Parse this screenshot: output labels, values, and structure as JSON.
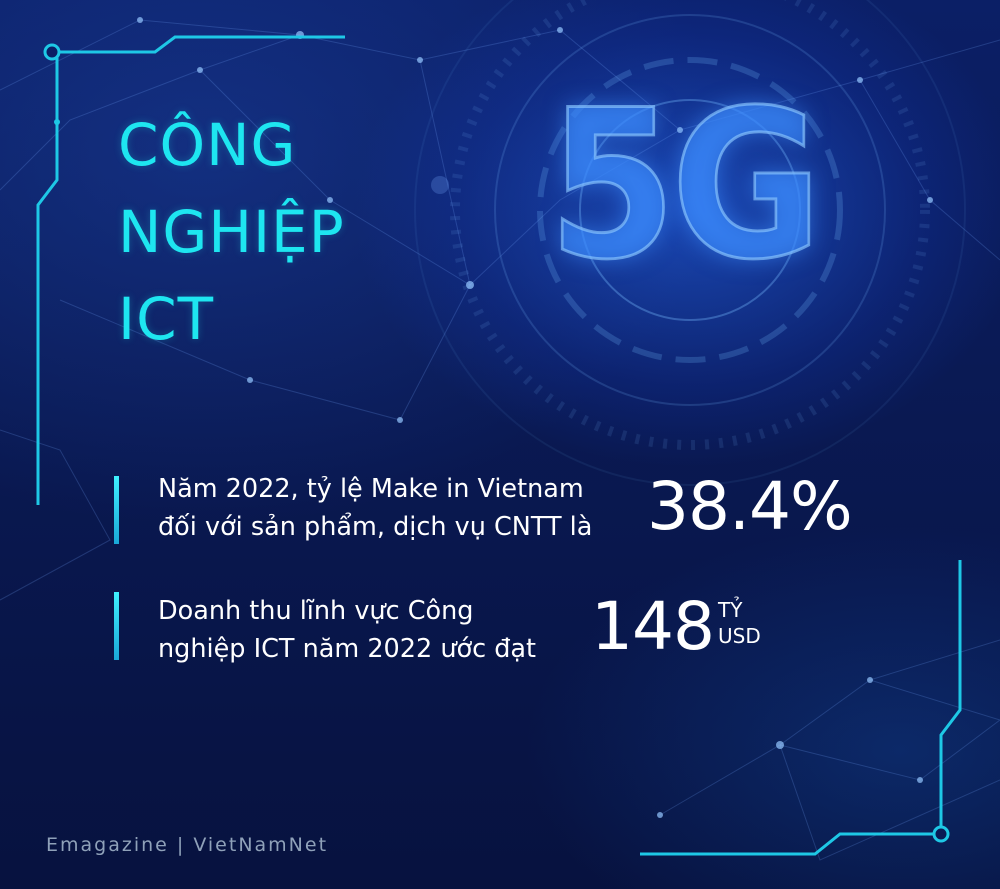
{
  "title": {
    "line1": "CÔNG",
    "line2": "NGHIỆP",
    "line3": "ICT"
  },
  "badge": "5G",
  "stats": [
    {
      "line1": "Năm 2022, tỷ lệ Make in Vietnam",
      "line2": "đối với sản phẩm, dịch vụ CNTT là",
      "value": "38.4%"
    },
    {
      "line1": "Doanh thu lĩnh vực Công",
      "line2": "nghiệp ICT năm 2022 ước đạt",
      "value": "148",
      "unit_line1": "TỶ",
      "unit_line2": "USD"
    }
  ],
  "credit": "Emagazine | VietNamNet",
  "colors": {
    "title": "#1ee6f0",
    "accent_bar": "#3ff0ff",
    "background": "#0a1a55",
    "credit": "#8fa1b9"
  }
}
